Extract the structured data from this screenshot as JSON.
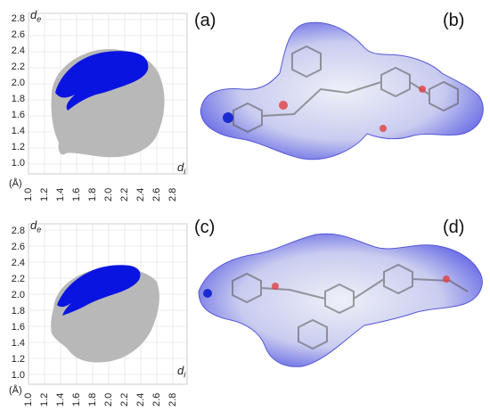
{
  "figure": {
    "panels": [
      {
        "letter": "(a)",
        "type": "fingerprint-plot"
      },
      {
        "letter": "(b)",
        "type": "hirshfeld-surface"
      },
      {
        "letter": "(c)",
        "type": "fingerprint-plot"
      },
      {
        "letter": "(d)",
        "type": "hirshfeld-surface"
      }
    ],
    "axis": {
      "y_label": "d",
      "y_sub": "e",
      "x_label": "d",
      "x_sub": "i",
      "unit": "(Å)",
      "y_ticks": [
        "2.8",
        "2.6",
        "2.4",
        "2.2",
        "2.0",
        "1.8",
        "1.6",
        "1.4",
        "1.2",
        "1.0"
      ],
      "x_ticks": [
        "1.0",
        "1.2",
        "1.4",
        "1.6",
        "1.8",
        "2.0",
        "2.2",
        "2.4",
        "2.6",
        "2.8"
      ]
    },
    "colors": {
      "cloud_gray": "#b8b8b8",
      "highlight_blue": "#0a14e0",
      "surface_white": "#f0f2f8",
      "surface_blue": "#3d3fe0",
      "surface_red": "#e04040"
    }
  }
}
